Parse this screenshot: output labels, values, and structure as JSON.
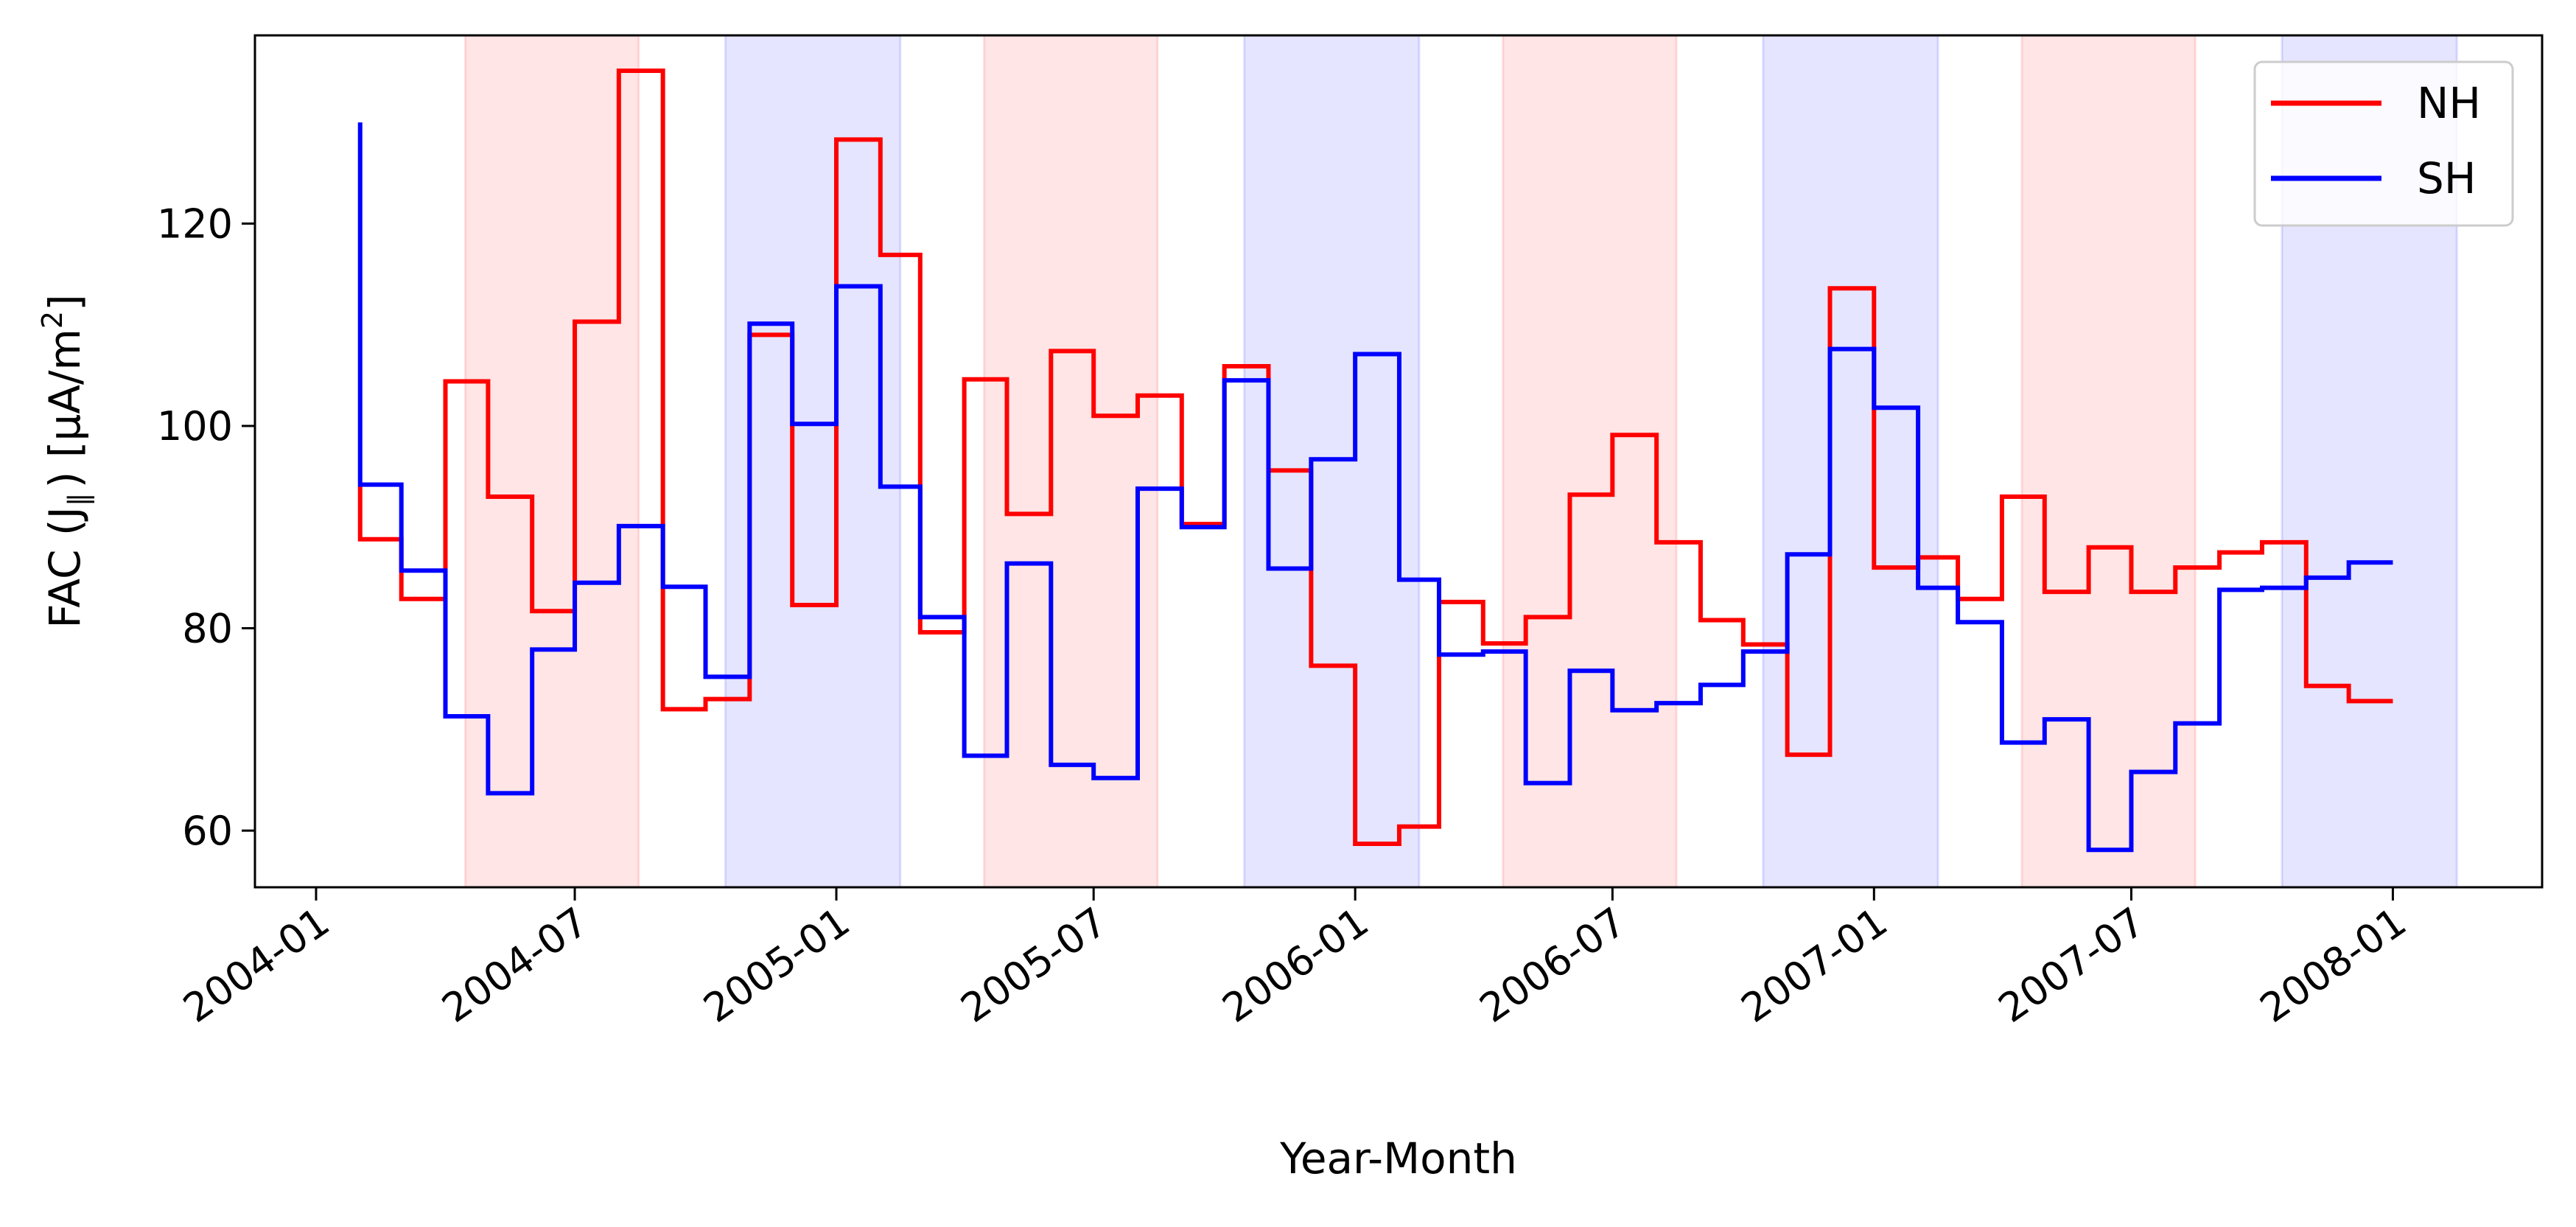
{
  "chart_data": {
    "type": "line",
    "step": "post",
    "xlabel": "Year-Month",
    "ylabel": {
      "prefix": "FAC (J",
      "subscript": "∥",
      "middle": ") [μA/m",
      "superscript": "2",
      "suffix": "]"
    },
    "xlim": [
      "2003-11-19",
      "2008-04-15"
    ],
    "ylim": [
      54.4,
      138.6
    ],
    "x_ticks": [
      "2004-01",
      "2004-07",
      "2005-01",
      "2005-07",
      "2006-01",
      "2006-07",
      "2007-01",
      "2007-07",
      "2008-01"
    ],
    "y_ticks": [
      60,
      80,
      100,
      120
    ],
    "grid": false,
    "legend": {
      "placement": "top-right"
    },
    "shaded_bands": [
      {
        "start": "2004-04-15",
        "end": "2004-08-15",
        "color": "#ff0000"
      },
      {
        "start": "2004-10-15",
        "end": "2005-02-15",
        "color": "#0000ff"
      },
      {
        "start": "2005-04-15",
        "end": "2005-08-15",
        "color": "#ff0000"
      },
      {
        "start": "2005-10-15",
        "end": "2006-02-15",
        "color": "#0000ff"
      },
      {
        "start": "2006-04-15",
        "end": "2006-08-15",
        "color": "#ff0000"
      },
      {
        "start": "2006-10-15",
        "end": "2007-02-15",
        "color": "#0000ff"
      },
      {
        "start": "2007-04-15",
        "end": "2007-08-15",
        "color": "#ff0000"
      },
      {
        "start": "2007-10-15",
        "end": "2008-02-15",
        "color": "#0000ff"
      }
    ],
    "x": [
      "2004-02-01",
      "2004-03-01",
      "2004-04-01",
      "2004-05-01",
      "2004-06-01",
      "2004-07-01",
      "2004-08-01",
      "2004-09-01",
      "2004-10-01",
      "2004-11-01",
      "2004-12-01",
      "2005-01-01",
      "2005-02-01",
      "2005-03-01",
      "2005-04-01",
      "2005-05-01",
      "2005-06-01",
      "2005-07-01",
      "2005-08-01",
      "2005-09-01",
      "2005-10-01",
      "2005-11-01",
      "2005-12-01",
      "2006-01-01",
      "2006-02-01",
      "2006-03-01",
      "2006-04-01",
      "2006-05-01",
      "2006-06-01",
      "2006-07-01",
      "2006-08-01",
      "2006-09-01",
      "2006-10-01",
      "2006-11-01",
      "2006-12-01",
      "2007-01-01",
      "2007-02-01",
      "2007-03-01",
      "2007-04-01",
      "2007-05-01",
      "2007-06-01",
      "2007-07-01",
      "2007-08-01",
      "2007-09-01",
      "2007-10-01",
      "2007-11-01",
      "2007-12-01",
      "2008-01-01"
    ],
    "series": [
      {
        "name": "NH",
        "color": "#ff0000",
        "first_value": 94,
        "values": [
          88.8,
          82.9,
          104.4,
          93.0,
          81.7,
          110.3,
          135.1,
          72.0,
          73.0,
          109.0,
          82.3,
          128.3,
          116.9,
          79.6,
          104.6,
          91.3,
          107.4,
          101.0,
          103.0,
          90.3,
          105.9,
          95.6,
          76.3,
          58.7,
          60.4,
          82.6,
          78.5,
          81.1,
          93.2,
          99.1,
          88.5,
          80.8,
          78.4,
          67.5,
          113.6,
          86.0,
          87.0,
          82.9,
          93.0,
          83.6,
          88.0,
          83.6,
          86.0,
          87.5,
          88.5,
          74.3,
          72.8,
          72.8
        ]
      },
      {
        "name": "SH",
        "color": "#0000ff",
        "first_value": 130,
        "values": [
          94.2,
          85.7,
          71.3,
          63.7,
          77.9,
          84.5,
          90.1,
          84.1,
          75.2,
          110.1,
          100.2,
          113.8,
          94.0,
          81.1,
          67.4,
          86.4,
          66.5,
          65.2,
          93.8,
          90.0,
          104.5,
          85.9,
          96.7,
          107.1,
          84.8,
          77.4,
          77.7,
          64.7,
          75.8,
          71.9,
          72.6,
          74.4,
          77.7,
          87.3,
          107.6,
          101.8,
          84.0,
          80.6,
          68.7,
          71.0,
          58.1,
          65.8,
          70.6,
          83.8,
          84.0,
          85.0,
          86.5,
          86.5
        ]
      }
    ]
  }
}
